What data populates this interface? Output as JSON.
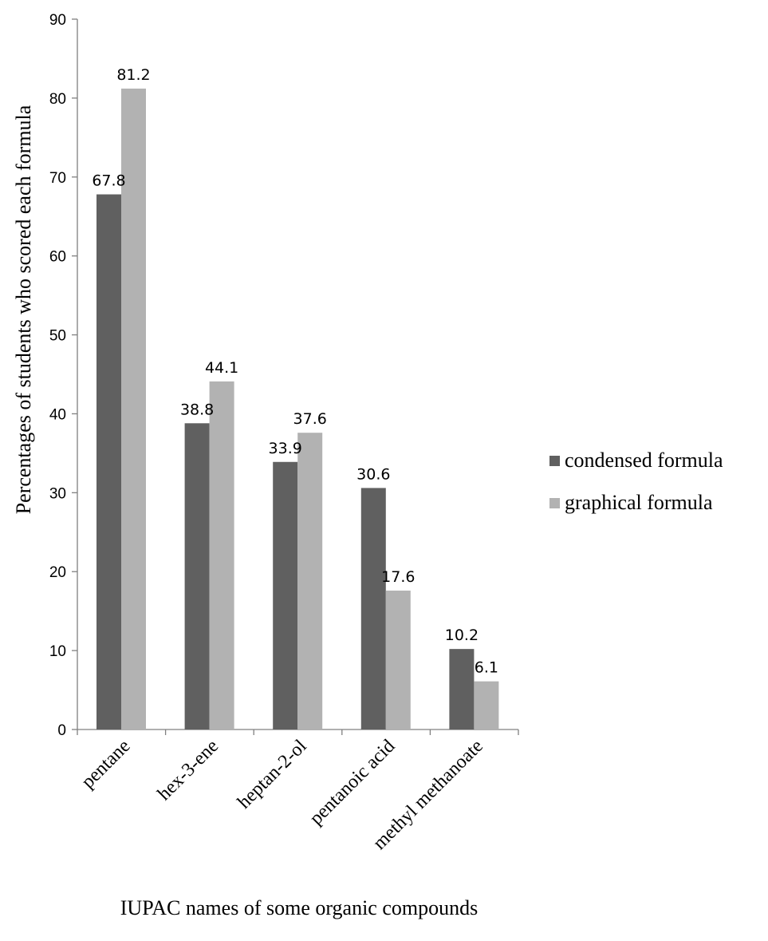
{
  "chart_data": {
    "type": "bar",
    "title": "",
    "xlabel": "IUPAC names of some organic compounds",
    "ylabel": "Percentages of students who scored each formula",
    "categories": [
      "pentane",
      "hex-3-ene",
      "heptan-2-ol",
      "pentanoic acid",
      "methyl methanoate"
    ],
    "series": [
      {
        "name": "condensed formula",
        "values": [
          67.8,
          38.8,
          33.9,
          30.6,
          10.2
        ],
        "color": "#606060"
      },
      {
        "name": "graphical formula",
        "values": [
          81.2,
          44.1,
          37.6,
          17.6,
          6.1
        ],
        "color": "#b2b2b2"
      }
    ],
    "ylim": [
      0,
      90
    ],
    "yticks": [
      0,
      10,
      20,
      30,
      40,
      50,
      60,
      70,
      80,
      90
    ],
    "grid": false,
    "legend_position": "right",
    "data_labels": true,
    "axis_color": "#808080"
  }
}
